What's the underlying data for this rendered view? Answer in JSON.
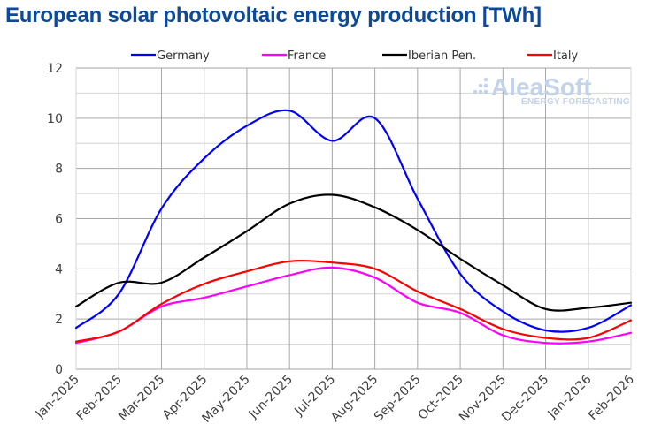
{
  "chart_data": {
    "type": "line",
    "title": "European solar photovoltaic energy production [TWh]",
    "xlabel": "",
    "ylabel": "",
    "ylim": [
      0,
      12
    ],
    "yticks": [
      0,
      2,
      4,
      6,
      8,
      10,
      12
    ],
    "grid": true,
    "legend_position": "top",
    "categories": [
      "Jan-2025",
      "Feb-2025",
      "Mar-2025",
      "Apr-2025",
      "May-2025",
      "Jun-2025",
      "Jul-2025",
      "Aug-2025",
      "Sep-2025",
      "Oct-2025",
      "Nov-2025",
      "Dec-2025",
      "Jan-2026",
      "Feb-2026"
    ],
    "series": [
      {
        "name": "Germany",
        "color": "#0000ff",
        "values": [
          1.65,
          3.0,
          6.4,
          8.4,
          9.7,
          10.3,
          9.1,
          10.0,
          6.8,
          3.8,
          2.3,
          1.55,
          1.65,
          2.55
        ]
      },
      {
        "name": "France",
        "color": "#ff00ff",
        "values": [
          1.05,
          1.5,
          2.5,
          2.85,
          3.3,
          3.75,
          4.05,
          3.65,
          2.65,
          2.25,
          1.35,
          1.05,
          1.1,
          1.45
        ]
      },
      {
        "name": "Iberian Pen.",
        "color": "#000000",
        "values": [
          2.5,
          3.45,
          3.45,
          4.45,
          5.5,
          6.6,
          6.95,
          6.45,
          5.55,
          4.4,
          3.35,
          2.4,
          2.45,
          2.65
        ]
      },
      {
        "name": "Italy",
        "color": "#ff0000",
        "values": [
          1.1,
          1.5,
          2.6,
          3.4,
          3.9,
          4.3,
          4.25,
          4.0,
          3.1,
          2.4,
          1.6,
          1.25,
          1.25,
          1.95
        ]
      }
    ]
  },
  "watermark": {
    "brand": "AleaSoft",
    "tagline": "ENERGY FORECASTING"
  }
}
